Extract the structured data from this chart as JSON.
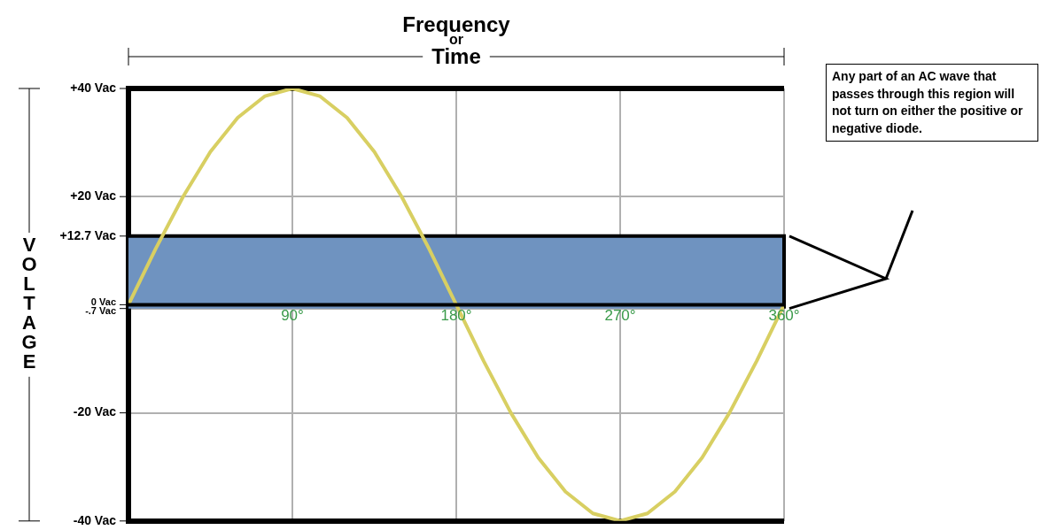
{
  "chart_data": {
    "type": "line",
    "xlabel": "Frequency or Time",
    "ylabel": "VOLTAGE",
    "x": [
      0,
      15,
      30,
      45,
      60,
      75,
      90,
      105,
      120,
      135,
      150,
      165,
      180,
      195,
      210,
      225,
      240,
      255,
      270,
      285,
      300,
      315,
      330,
      345,
      360
    ],
    "series": [
      {
        "color": "#d8cf62",
        "values": [
          0,
          10.4,
          20,
          28.3,
          34.6,
          38.6,
          40,
          38.6,
          34.6,
          28.3,
          20,
          10.4,
          0,
          -10.4,
          -20,
          -28.3,
          -34.6,
          -38.6,
          -40,
          -38.6,
          -34.6,
          -28.3,
          -20,
          -10.4,
          0
        ]
      }
    ],
    "xlim": [
      0,
      360
    ],
    "xticks": [
      {
        "value": 0,
        "label": null
      },
      {
        "value": 90,
        "label": "90°"
      },
      {
        "value": 180,
        "label": "180°"
      },
      {
        "value": 270,
        "label": "270°"
      },
      {
        "value": 360,
        "label": "360°"
      }
    ],
    "ylim": [
      -40,
      40
    ],
    "yticks": [
      {
        "value": 40,
        "label": "+40 Vac"
      },
      {
        "value": 20,
        "label": "+20 Vac"
      },
      {
        "value": 12.7,
        "label": "+12.7 Vac"
      },
      {
        "value": 0,
        "label": "0 Vac"
      },
      {
        "value": -0.7,
        "label": "-.7 Vac"
      },
      {
        "value": -20,
        "label": "-20 Vac"
      },
      {
        "value": -40,
        "label": "-40 Vac"
      }
    ],
    "bands": [
      {
        "axis": "y",
        "from": -0.7,
        "to": 12.7,
        "color": "#6f93c0"
      }
    ],
    "ref_lines": [
      {
        "axis": "y",
        "value": 0,
        "color": "#000000"
      }
    ],
    "grid": true,
    "marker": "none",
    "annotations": [
      "Any part of an AC wave that passes through this region will not turn on either the positive or negative diode."
    ]
  }
}
